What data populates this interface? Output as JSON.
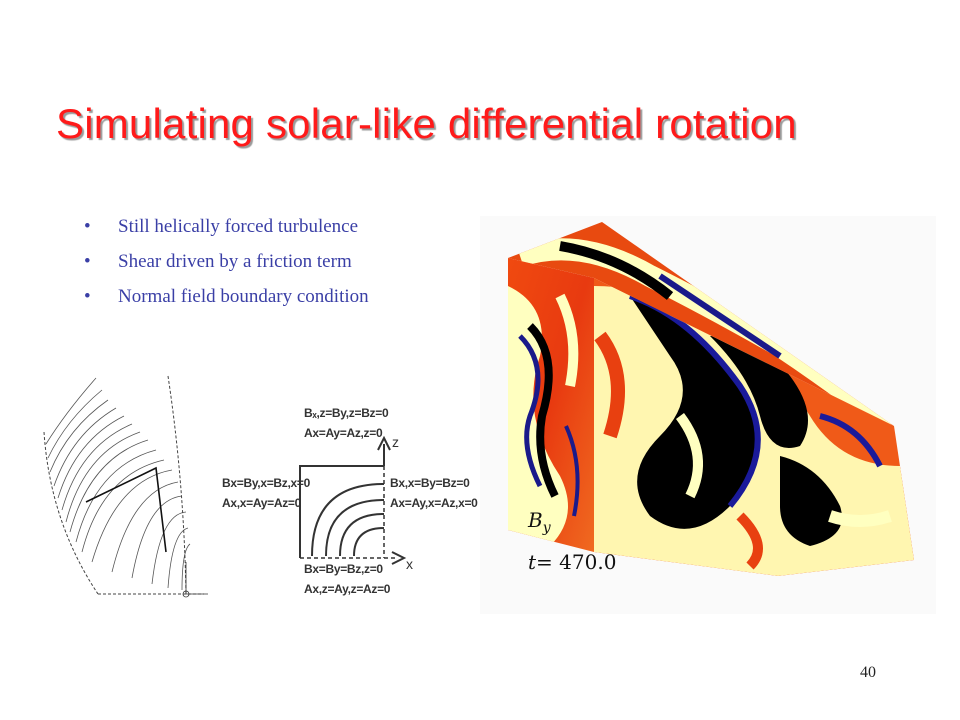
{
  "slide": {
    "title": "Simulating solar-like differential rotation",
    "bullets": [
      "Still helically forced turbulence",
      "Shear driven by a friction term",
      "Normal field boundary condition"
    ],
    "bullet_glyph": "•",
    "page_number": "40"
  },
  "bc_diagram": {
    "top": [
      "Bₓ,z=By,z=Bz=0",
      "Ax=Ay=Az,z=0"
    ],
    "left": [
      "Bx=By,x=Bz,x=0",
      "Ax,x=Ay=Az=0"
    ],
    "right": [
      "Bx,x=By=Bz=0",
      "Ax=Ay,x=Az,x=0"
    ],
    "bottom": [
      "Bx=By=Bz,z=0",
      "Ax,z=Ay,z=Az=0"
    ],
    "axis_z": "z",
    "axis_x": "x"
  },
  "simulation": {
    "field_label": "B",
    "field_subscript": "y",
    "time_label": "t=",
    "time_value": "470.0"
  },
  "colors": {
    "title": "#ff1a1a",
    "bullets": "#3a3fa6"
  }
}
